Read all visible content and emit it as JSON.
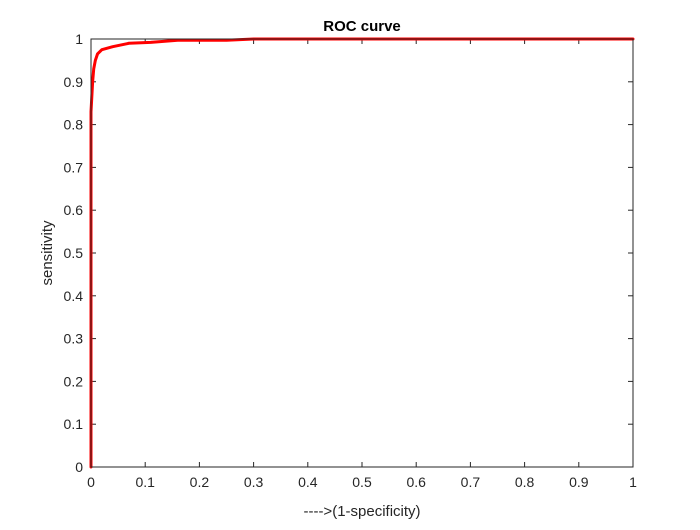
{
  "chart_data": {
    "type": "line",
    "title": "ROC curve",
    "xlabel": "---->(1-specificity)",
    "ylabel": "sensitivity",
    "xlim": [
      0,
      1
    ],
    "ylim": [
      0,
      1
    ],
    "grid": false,
    "legend": "none",
    "x_ticks": [
      "0",
      "0.1",
      "0.2",
      "0.3",
      "0.4",
      "0.5",
      "0.6",
      "0.7",
      "0.8",
      "0.9",
      "1"
    ],
    "y_ticks": [
      "0",
      "0.1",
      "0.2",
      "0.3",
      "0.4",
      "0.5",
      "0.6",
      "0.7",
      "0.8",
      "0.9",
      "1"
    ],
    "series": [
      {
        "color": "#ff0000",
        "x": [
          0,
          0,
          0,
          0,
          0.003,
          0.005,
          0.008,
          0.012,
          0.02,
          0.04,
          0.07,
          0.11,
          0.16,
          0.25,
          0.3,
          0.5,
          1
        ],
        "y": [
          0,
          0.2,
          0.6,
          0.83,
          0.9,
          0.93,
          0.95,
          0.965,
          0.975,
          0.982,
          0.99,
          0.992,
          0.997,
          0.997,
          1,
          1,
          1
        ]
      }
    ]
  }
}
